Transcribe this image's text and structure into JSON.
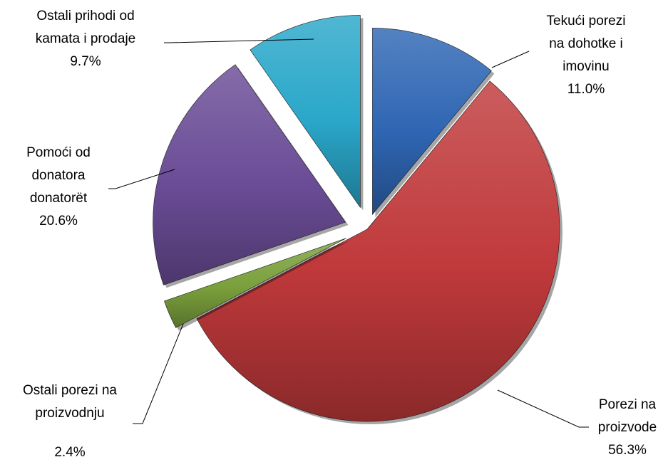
{
  "chart_data": {
    "type": "pie",
    "exploded": true,
    "slices": [
      {
        "key": "tekuci",
        "lines": [
          "Tekući porezi",
          "na dohotke i",
          "imovinu"
        ],
        "value": 11.0,
        "value_label": "11.0%",
        "color": "#2f66b3"
      },
      {
        "key": "proizvode",
        "lines": [
          "Porezi na",
          "proizvode"
        ],
        "value": 56.3,
        "value_label": "56.3%",
        "color": "#c0393b"
      },
      {
        "key": "proizvodnju",
        "lines": [
          "Ostali porezi na",
          "proizvodnju"
        ],
        "value": 2.4,
        "value_label": "2.4%",
        "color": "#7aa03c"
      },
      {
        "key": "donatora",
        "lines": [
          "Pomoći od",
          "donatora",
          "donatorët"
        ],
        "value": 20.6,
        "value_label": "20.6%",
        "color": "#6a4c96"
      },
      {
        "key": "kamata",
        "lines": [
          "Ostali prihodi od",
          "kamata i prodaje"
        ],
        "value": 9.7,
        "value_label": "9.7%",
        "color": "#2aa7c9"
      }
    ]
  }
}
